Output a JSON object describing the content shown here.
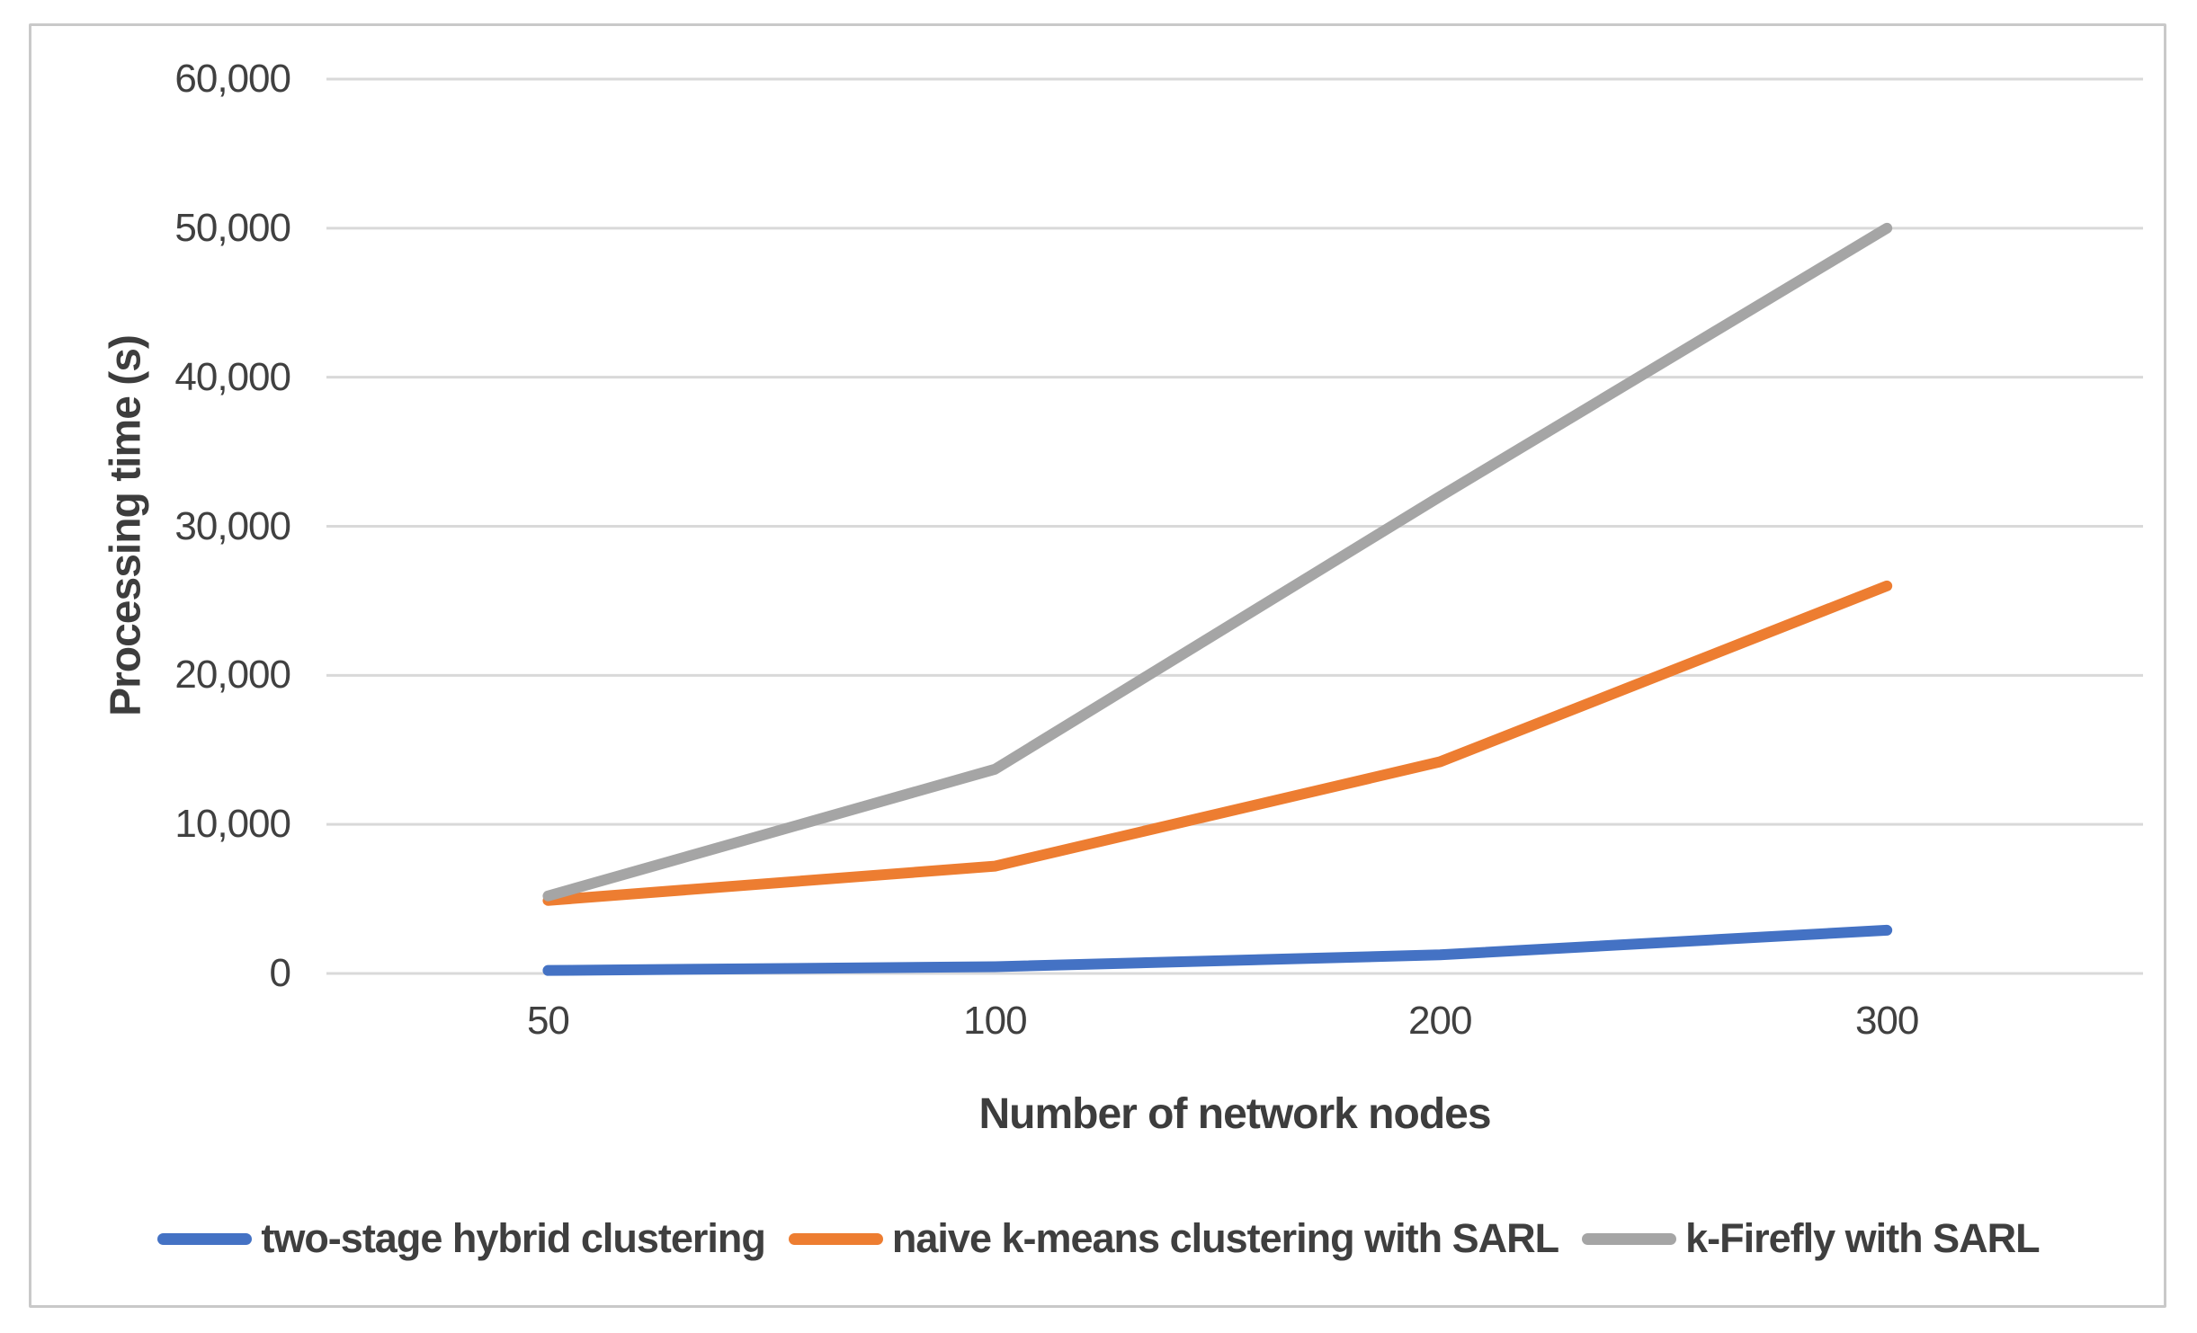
{
  "figure": {
    "background_color": "#ffffff",
    "border_color": "#c9c9c9"
  },
  "styles": {
    "text_color": "#404040",
    "gridline_color": "#d9d9d9",
    "axis_line_color": "#d9d9d9"
  },
  "chart_data": {
    "type": "line",
    "title": "",
    "categories": [
      "50",
      "100",
      "200",
      "300"
    ],
    "series": [
      {
        "name": "two-stage hybrid clustering",
        "color": "#4472C4",
        "values": [
          200,
          450,
          1250,
          2900
        ]
      },
      {
        "name": "naive k-means clustering with SARL",
        "color": "#ED7D31",
        "values": [
          4900,
          7200,
          14200,
          26000
        ]
      },
      {
        "name": "k-Firefly with SARL",
        "color": "#A5A5A5",
        "values": [
          5200,
          13700,
          32000,
          50000
        ]
      }
    ],
    "xlabel": "Number of network nodes",
    "ylabel": "Processing time (s)",
    "ylim": [
      0,
      60000
    ],
    "ytick_interval": 10000,
    "ytick_labels": [
      "0",
      "10,000",
      "20,000",
      "30,000",
      "40,000",
      "50,000",
      "60,000"
    ],
    "grid": "horizontal",
    "legend_position": "bottom",
    "line_width": 12
  }
}
